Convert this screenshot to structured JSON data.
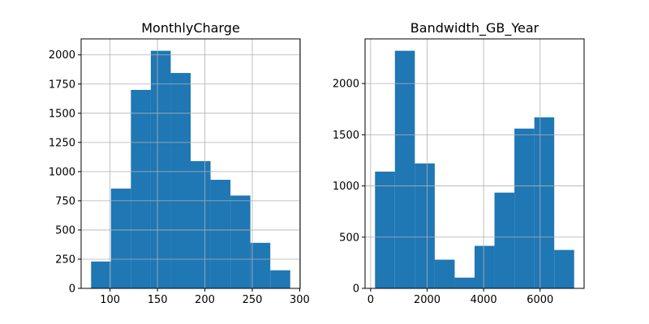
{
  "chart_data": [
    {
      "type": "bar",
      "title": "MonthlyCharge",
      "xlabel": "",
      "ylabel": "",
      "bin_edges": [
        79.98,
        100.98,
        121.98,
        142.98,
        163.98,
        184.98,
        205.98,
        226.98,
        247.98,
        268.98,
        289.98
      ],
      "values": [
        230,
        855,
        1700,
        2035,
        1845,
        1090,
        930,
        795,
        390,
        155
      ],
      "xlim": [
        69.48,
        300.48
      ],
      "ylim": [
        0,
        2137
      ],
      "xticks": [
        100,
        150,
        200,
        250,
        300
      ],
      "yticks": [
        0,
        250,
        500,
        750,
        1000,
        1250,
        1500,
        1750,
        2000
      ],
      "grid": true,
      "color": "#1f77b4"
    },
    {
      "type": "bar",
      "title": "Bandwidth_GB_Year",
      "xlabel": "",
      "ylabel": "",
      "bin_edges": [
        155,
        860,
        1565,
        2270,
        2975,
        3680,
        4385,
        5090,
        5795,
        6500,
        7205
      ],
      "values": [
        1140,
        2320,
        1220,
        280,
        105,
        415,
        935,
        1560,
        1670,
        375
      ],
      "xlim": [
        -197.5,
        7557.5
      ],
      "ylim": [
        0,
        2436
      ],
      "xticks": [
        0,
        2000,
        4000,
        6000
      ],
      "yticks": [
        0,
        500,
        1000,
        1500,
        2000
      ],
      "grid": true,
      "color": "#1f77b4"
    }
  ]
}
